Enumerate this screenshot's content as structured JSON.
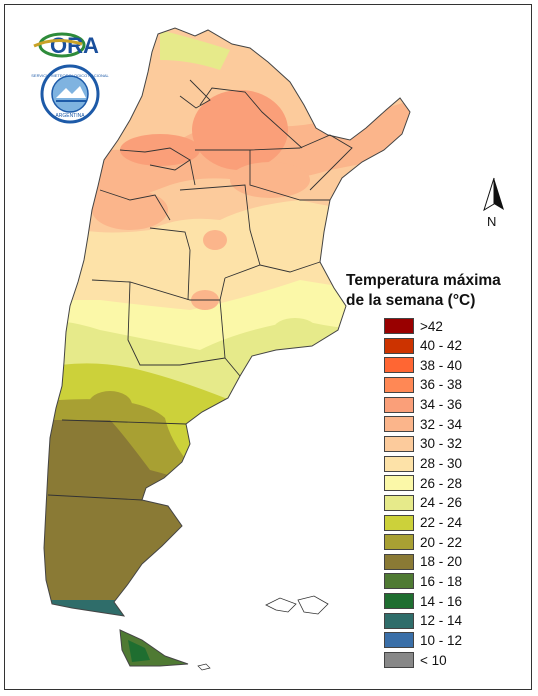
{
  "logos": {
    "ora": {
      "text": "ORA",
      "colors": {
        "green": "#2e8b3a",
        "gold": "#c9a227",
        "blue": "#1a4f9c"
      }
    },
    "smn_seal": {
      "outer_text": "SERVICIO METEOROLOGICO NACIONAL",
      "bottom_text": "ARGENTINA",
      "colors": {
        "blue": "#1d5aa8",
        "light": "#7fb3e0"
      }
    }
  },
  "north_arrow": {
    "label": "N"
  },
  "legend": {
    "title_line1": "Temperatura máxima",
    "title_line2": "de la semana (°C)",
    "classes": [
      {
        "label": ">42",
        "color": "#990000"
      },
      {
        "label": "40 - 42",
        "color": "#cc3300"
      },
      {
        "label": "38 - 40",
        "color": "#ff6633"
      },
      {
        "label": "36 - 38",
        "color": "#ff8855"
      },
      {
        "label": "34 - 36",
        "color": "#fa9f79"
      },
      {
        "label": "32 - 34",
        "color": "#fbb58b"
      },
      {
        "label": "30 - 32",
        "color": "#fccb9c"
      },
      {
        "label": "28 - 30",
        "color": "#fde2a8"
      },
      {
        "label": "26 - 28",
        "color": "#fbf8a8"
      },
      {
        "label": "24 - 26",
        "color": "#e6ea8a"
      },
      {
        "label": "22 - 24",
        "color": "#ccd13a"
      },
      {
        "label": "20 - 22",
        "color": "#a8a033"
      },
      {
        "label": "18 - 20",
        "color": "#8a7a35"
      },
      {
        "label": "16 - 18",
        "color": "#4f7a33"
      },
      {
        "label": "14 - 16",
        "color": "#1f6e30"
      },
      {
        "label": "12 - 14",
        "color": "#2f6d6a"
      },
      {
        "label": "10 - 12",
        "color": "#3a6fa8"
      },
      {
        "label": "< 10",
        "color": "#888888"
      }
    ]
  }
}
